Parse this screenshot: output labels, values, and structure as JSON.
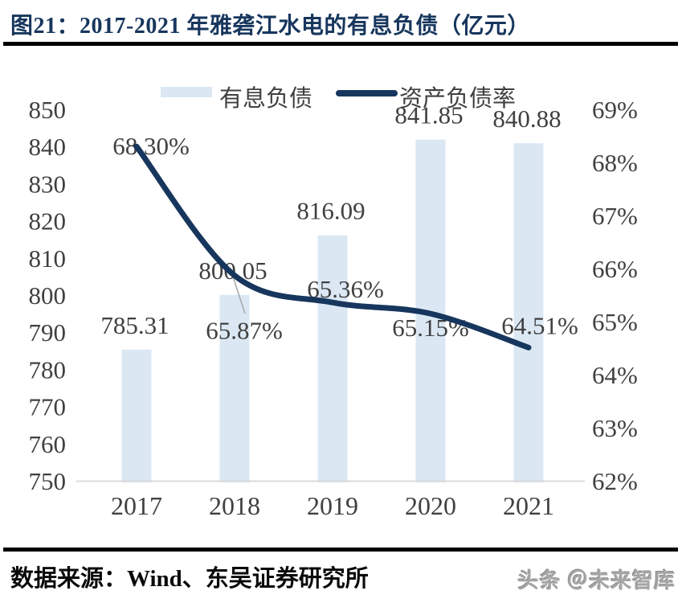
{
  "page": {
    "title": "图21：2017-2021 年雅砻江水电的有息负债（亿元）",
    "footer": {
      "source": "数据来源：Wind、东吴证券研究所",
      "watermark": "头条 ＠未来智库"
    }
  },
  "colors": {
    "title": "#17365d",
    "bar": "#dbe8f4",
    "line": "#17365d",
    "axis_text": "#404040",
    "axis_line": "#d9d9d9",
    "rule": "#000000",
    "leader": "#a6a6a6",
    "watermark": "#a5a5a5"
  },
  "chart_data": {
    "type": "bar",
    "subtype": "bar+line combo, dual axis",
    "title": "2017-2021 年雅砻江水电的有息负债（亿元）",
    "categories": [
      "2017",
      "2018",
      "2019",
      "2020",
      "2021"
    ],
    "series": [
      {
        "name": "有息负债",
        "type": "bar",
        "axis": "left",
        "values": [
          785.31,
          800.05,
          816.09,
          841.85,
          840.88
        ],
        "labels": [
          "785.31",
          "800.05",
          "816.09",
          "841.85",
          "840.88"
        ]
      },
      {
        "name": "资产负债率",
        "type": "line",
        "axis": "right",
        "values": [
          68.3,
          65.87,
          65.36,
          65.15,
          64.51
        ],
        "labels": [
          "68.30%",
          "65.87%",
          "65.36%",
          "65.15%",
          "64.51%"
        ]
      }
    ],
    "left_axis": {
      "min": 750,
      "max": 850,
      "step": 10,
      "ticks": [
        "850",
        "840",
        "830",
        "820",
        "810",
        "800",
        "790",
        "780",
        "770",
        "760",
        "750"
      ]
    },
    "right_axis": {
      "min": 62,
      "max": 69,
      "step": 1,
      "ticks": [
        "69%",
        "68%",
        "67%",
        "66%",
        "65%",
        "64%",
        "63%",
        "62%"
      ]
    },
    "legend_position": "top",
    "grid": false
  }
}
